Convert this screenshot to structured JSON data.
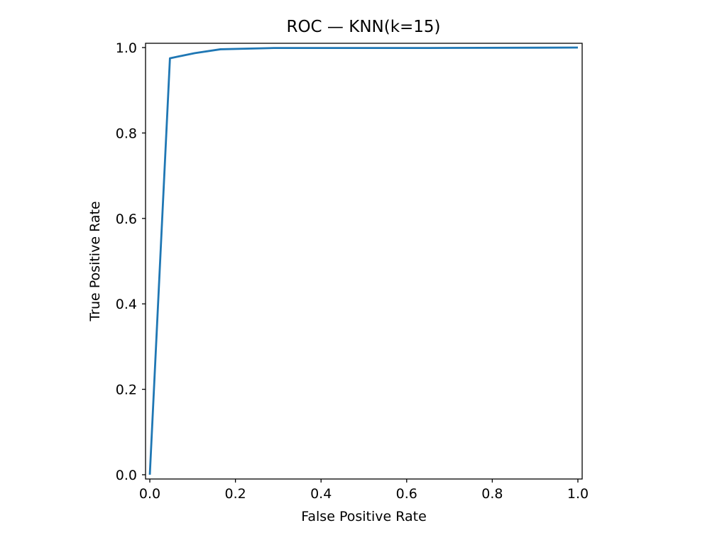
{
  "chart_data": {
    "type": "line",
    "title": "ROC — KNN(k=15)",
    "xlabel": "False Positive Rate",
    "ylabel": "True Positive Rate",
    "xlim": [
      -0.01,
      1.01
    ],
    "ylim": [
      -0.01,
      1.01
    ],
    "xticks": [
      0.0,
      0.2,
      0.4,
      0.6,
      0.8,
      1.0
    ],
    "yticks": [
      0.0,
      0.2,
      0.4,
      0.6,
      0.8,
      1.0
    ],
    "xtick_labels": [
      "0.0",
      "0.2",
      "0.4",
      "0.6",
      "0.8",
      "1.0"
    ],
    "ytick_labels": [
      "0.0",
      "0.2",
      "0.4",
      "0.6",
      "0.8",
      "1.0"
    ],
    "grid": false,
    "legend": false,
    "series": [
      {
        "color": "#1f77b4",
        "x": [
          0.0,
          0.047,
          0.105,
          0.165,
          0.29,
          0.45,
          0.65,
          1.0
        ],
        "y": [
          0.0,
          0.975,
          0.987,
          0.996,
          0.999,
          0.999,
          0.999,
          1.0
        ]
      }
    ]
  }
}
